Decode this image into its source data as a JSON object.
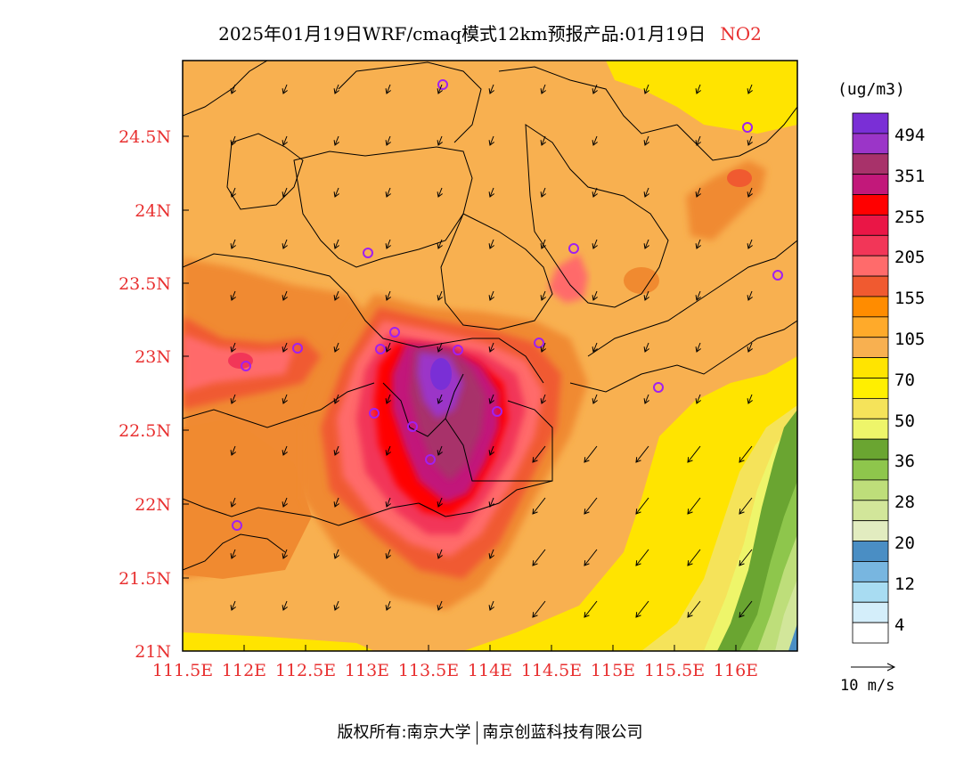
{
  "title": {
    "main": "2025年01月19日WRF/cmaq模式12km预报产品:01月19日",
    "pollutant": "NO2"
  },
  "axes": {
    "lat_labels": [
      "24.5N",
      "24N",
      "23.5N",
      "23N",
      "22.5N",
      "22N",
      "21.5N",
      "21N"
    ],
    "lon_labels": [
      "111.5E",
      "112E",
      "112.5E",
      "113E",
      "113.5E",
      "114E",
      "114.5E",
      "115E",
      "115.5E",
      "116E"
    ]
  },
  "colorbar": {
    "unit": "(ug/m3)",
    "labels": [
      "494",
      "351",
      "255",
      "205",
      "155",
      "105",
      "70",
      "50",
      "36",
      "28",
      "20",
      "12",
      "4"
    ],
    "colors": [
      "#7a2fd6",
      "#9b35c8",
      "#a8326a",
      "#c2187a",
      "#ff0000",
      "#ea1646",
      "#f23658",
      "#ff6b6b",
      "#f05a30",
      "#ff8c00",
      "#ffaa2a",
      "#f8b050",
      "#ffe400",
      "#ffef00",
      "#f5e35a",
      "#eef56a",
      "#6aa531",
      "#8ec64c",
      "#bede7a",
      "#d2e69a",
      "#e2ecc0",
      "#4a8ec4",
      "#78b6e0",
      "#a8dcf2",
      "#d4eefa",
      "#ffffff"
    ]
  },
  "wind_scale": {
    "label": "10 m/s"
  },
  "copyright": {
    "left": "版权所有:南京大学",
    "right": "南京创蓝科技有限公司"
  },
  "palette": {
    "orange": "#f8b050",
    "dark_orange": "#f08a30",
    "red": "#ea1646",
    "pink": "#ff6b6b",
    "purple": "#9b35c8",
    "yellow": "#ffe400",
    "green": "#6aa531"
  }
}
